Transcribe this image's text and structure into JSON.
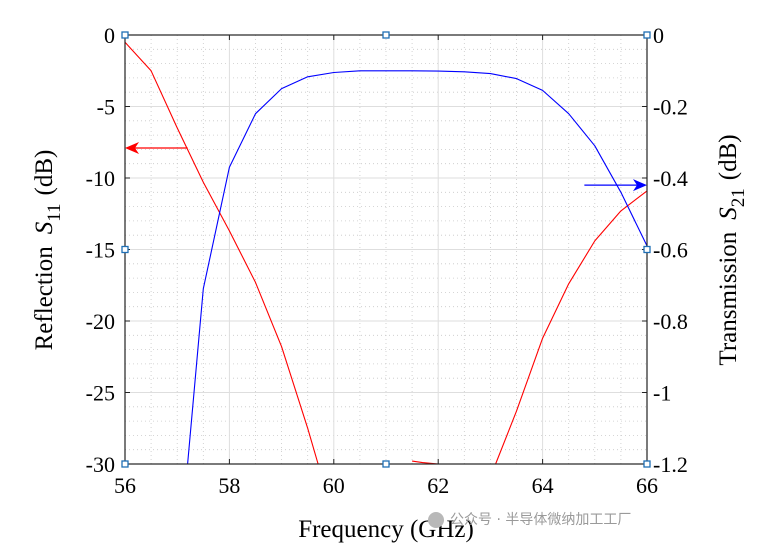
{
  "chart_data": {
    "type": "line",
    "xlabel": "Frequency (GHz)",
    "ylabel_left": {
      "main": "Reflection",
      "symbol": "S",
      "sub": "11",
      "unit": "(dB)"
    },
    "ylabel_right": {
      "main": "Transmission",
      "symbol": "S",
      "sub": "21",
      "unit": "(dB)"
    },
    "xlim": [
      56,
      66
    ],
    "ylim_left": [
      -30,
      0
    ],
    "ylim_right": [
      -1.2,
      0
    ],
    "xticks": [
      "56",
      "58",
      "60",
      "62",
      "64",
      "66"
    ],
    "yticks_left": [
      "0",
      "-5",
      "-10",
      "-15",
      "-20",
      "-25",
      "-30"
    ],
    "yticks_right": [
      "0",
      "-0.2",
      "-0.4",
      "-0.6",
      "-0.8",
      "-1",
      "-1.2"
    ],
    "grid": true,
    "series": [
      {
        "name": "S11",
        "axis": "left",
        "color": "#ff0000",
        "segments": [
          {
            "x": [
              56,
              56.5,
              57,
              57.5,
              58,
              58.5,
              59,
              59.5,
              59.7
            ],
            "y": [
              -0.5,
              -2.5,
              -6.5,
              -10.3,
              -13.7,
              -17.3,
              -21.8,
              -27.5,
              -30
            ]
          },
          {
            "x": [
              61.5,
              61.7,
              62
            ],
            "y": [
              -29.8,
              -29.9,
              -30
            ]
          },
          {
            "x": [
              63.1,
              63.5,
              64,
              64.5,
              65,
              65.5,
              66
            ],
            "y": [
              -30,
              -26.3,
              -21.2,
              -17.4,
              -14.4,
              -12.3,
              -10.9
            ]
          }
        ]
      },
      {
        "name": "S21",
        "axis": "right",
        "color": "#0000ff",
        "segments": [
          {
            "x": [
              57.2,
              57.5,
              58,
              58.5,
              59,
              59.5,
              60,
              60.5,
              61,
              61.5,
              62,
              62.5,
              63,
              63.5,
              64,
              64.5,
              65,
              65.5,
              66
            ],
            "y": [
              -1.2,
              -0.71,
              -0.37,
              -0.22,
              -0.15,
              -0.117,
              -0.105,
              -0.1,
              -0.1,
              -0.1,
              -0.101,
              -0.103,
              -0.108,
              -0.122,
              -0.155,
              -0.22,
              -0.31,
              -0.44,
              -0.59
            ]
          }
        ]
      }
    ],
    "annotations": [
      {
        "type": "arrow",
        "color": "#ff0000",
        "from": [
          57.2,
          -7.9
        ],
        "to": [
          56,
          -7.9
        ],
        "points_to": "left axis"
      },
      {
        "type": "arrow",
        "color": "#0000ff",
        "from": [
          64.8,
          -10.5
        ],
        "to": [
          66,
          -10.5
        ],
        "points_to": "right axis"
      }
    ],
    "markers_left_axis": [
      {
        "x": 56,
        "y": 0
      },
      {
        "x": 61,
        "y": 0
      },
      {
        "x": 66,
        "y": 0
      },
      {
        "x": 56,
        "y": -15
      },
      {
        "x": 66,
        "y": -15
      },
      {
        "x": 56,
        "y": -30
      },
      {
        "x": 61,
        "y": -30
      },
      {
        "x": 66,
        "y": -30
      }
    ]
  },
  "watermark": "公众号 · 半导体微纳加工工厂"
}
